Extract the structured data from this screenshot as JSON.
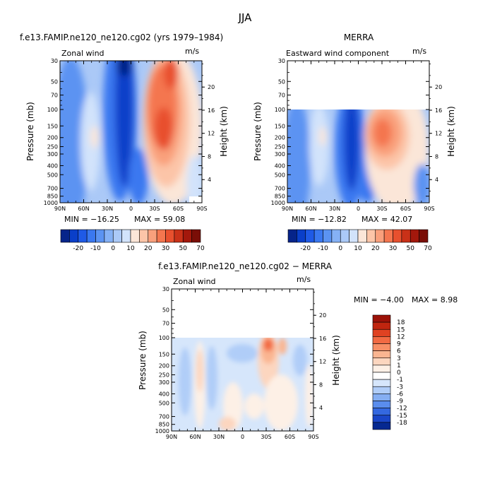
{
  "figure": {
    "title": "JJA"
  },
  "scales": {
    "full": {
      "labels": [
        "-20",
        "-10",
        "0",
        "10",
        "20",
        "30",
        "50",
        "70"
      ],
      "colors": [
        "#06248a",
        "#0a3fc9",
        "#1f5ae6",
        "#3a78f0",
        "#5b93f2",
        "#85b1f5",
        "#abc9f7",
        "#d2e3fb",
        "#fbe6d8",
        "#fcc5a8",
        "#f9a07c",
        "#f4764f",
        "#e8502e",
        "#c93118",
        "#a3180c",
        "#7a0e07"
      ]
    },
    "diff": {
      "labels": [
        "18",
        "15",
        "12",
        "9",
        "6",
        "3",
        "1",
        "0",
        "-1",
        "-3",
        "-6",
        "-9",
        "-12",
        "-15",
        "-18"
      ],
      "colors": [
        "#9c1208",
        "#c0250f",
        "#e04222",
        "#f26a43",
        "#f88f66",
        "#fab591",
        "#fcd6bf",
        "#fdf0e6",
        "#ffffff",
        "#d6e6fb",
        "#b0cdf8",
        "#85aef2",
        "#5a8ded",
        "#3468e0",
        "#1a46c8",
        "#062991"
      ]
    }
  },
  "chart_data": [
    {
      "type": "heatmap",
      "title": "f.e13.FAMIP.ne120_ne120.cg02 (yrs 1979–1984)",
      "subtitle_left": "Zonal wind",
      "units": "m/s",
      "ylabel": "Pressure (mb)",
      "y2label": "Height (km)",
      "x_ticks": [
        "90N",
        "60N",
        "30N",
        "0",
        "30S",
        "60S",
        "90S"
      ],
      "y_ticks": [
        "30",
        "50",
        "70",
        "100",
        "150",
        "200",
        "250",
        "300",
        "400",
        "500",
        "700",
        "850",
        "1000"
      ],
      "y2_ticks": [
        "20",
        "16",
        "12",
        "8",
        "4"
      ],
      "ylim_mb": [
        1000,
        30
      ],
      "min": -16.25,
      "max": 59.08,
      "min_label": "MIN = −16.25",
      "max_label": "MAX =  59.08",
      "legend": "full"
    },
    {
      "type": "heatmap",
      "title": "MERRA",
      "subtitle_left": "Eastward wind component",
      "units": "m/s",
      "ylabel": "Pressure (mb)",
      "y2label": "Height (km)",
      "x_ticks": [
        "90N",
        "60N",
        "30N",
        "0",
        "30S",
        "60S",
        "90S"
      ],
      "y_ticks": [
        "30",
        "50",
        "70",
        "100",
        "150",
        "200",
        "250",
        "300",
        "400",
        "500",
        "700",
        "850",
        "1000"
      ],
      "y2_ticks": [
        "20",
        "16",
        "12",
        "8",
        "4"
      ],
      "ylim_mb": [
        1000,
        30
      ],
      "data_top_mb": 100,
      "min": -12.82,
      "max": 42.07,
      "min_label": "MIN = −12.82",
      "max_label": "MAX =  42.07",
      "legend": "full"
    },
    {
      "type": "heatmap",
      "title": "f.e13.FAMIP.ne120_ne120.cg02 − MERRA",
      "subtitle_left": "Zonal wind",
      "units": "m/s",
      "ylabel": "Pressure (mb)",
      "y2label": "Height (km)",
      "x_ticks": [
        "90N",
        "60N",
        "30N",
        "0",
        "30S",
        "60S",
        "90S"
      ],
      "y_ticks": [
        "30",
        "50",
        "70",
        "100",
        "150",
        "200",
        "250",
        "300",
        "400",
        "500",
        "700",
        "850",
        "1000"
      ],
      "y2_ticks": [
        "20",
        "16",
        "12",
        "8",
        "4"
      ],
      "ylim_mb": [
        1000,
        30
      ],
      "data_top_mb": 100,
      "min": -4.0,
      "max": 8.98,
      "min_label": "MIN =   −4.00",
      "max_label": "MAX =    8.98",
      "legend": "diff"
    }
  ]
}
